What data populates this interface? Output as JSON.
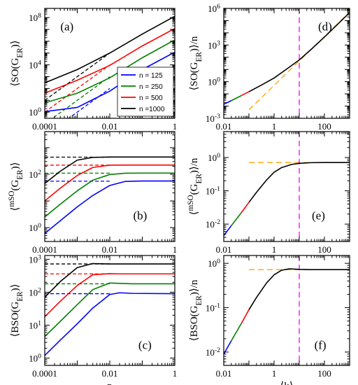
{
  "chart_data": [
    {
      "id": "a",
      "label": "(a)",
      "type": "line",
      "xscale": "log",
      "yscale": "log",
      "xlim": [
        0.0001,
        1
      ],
      "ylim": [
        0.3,
        600000000
      ],
      "xticks": [
        "0.0001",
        "0.01",
        "1"
      ],
      "xtick_values": [
        0.0001,
        0.01,
        1
      ],
      "yticks": [
        "10^0",
        "10^4",
        "10^8"
      ],
      "ytick_values": [
        1,
        10000,
        100000000
      ],
      "ylabel": "⟨SO(G_ER)⟩",
      "xlabel": "",
      "legend": {
        "position": "lower-right",
        "entries": [
          "n = 125",
          "n = 250",
          "n = 500",
          "n =1000"
        ]
      },
      "series": [
        {
          "name": "n = 125",
          "color": "#0000ff",
          "x": [
            0.0001,
            0.001,
            0.01,
            0.1,
            1
          ],
          "y": [
            1.1,
            2.5,
            60,
            4000,
            120000
          ]
        },
        {
          "name": "n = 250",
          "color": "#008000",
          "x": [
            0.0001,
            0.001,
            0.01,
            0.1,
            1
          ],
          "y": [
            6,
            40,
            800,
            40000,
            1300000
          ]
        },
        {
          "name": "n = 500",
          "color": "#ff0000",
          "x": [
            0.0001,
            0.001,
            0.01,
            0.1,
            1
          ],
          "y": [
            40,
            500,
            9000,
            400000,
            12000000
          ]
        },
        {
          "name": "n =1000",
          "color": "#000000",
          "x": [
            0.0001,
            0.001,
            0.01,
            0.1,
            1
          ],
          "y": [
            300,
            4000,
            100000,
            4000000,
            130000000
          ]
        }
      ],
      "reference_lines": [
        {
          "color": "#0000ff",
          "dashed": true,
          "x": [
            0.0001,
            0.01
          ],
          "y": [
            0.01,
            100
          ]
        },
        {
          "color": "#008000",
          "dashed": true,
          "x": [
            0.0001,
            0.01
          ],
          "y": [
            0.1,
            1000
          ]
        },
        {
          "color": "#ff0000",
          "dashed": true,
          "x": [
            0.0001,
            0.01
          ],
          "y": [
            1,
            10000
          ]
        },
        {
          "color": "#000000",
          "dashed": true,
          "x": [
            0.0001,
            0.01
          ],
          "y": [
            10,
            100000
          ]
        }
      ]
    },
    {
      "id": "b",
      "label": "(b)",
      "type": "line",
      "xscale": "log",
      "yscale": "log",
      "xlim": [
        0.0001,
        1
      ],
      "ylim": [
        0.3,
        4000
      ],
      "xticks": [
        "0.0001",
        "0.01",
        "1"
      ],
      "xtick_values": [
        0.0001,
        0.01,
        1
      ],
      "yticks": [
        "10^0",
        "10^2"
      ],
      "ytick_values": [
        1,
        100
      ],
      "ylabel": "⟨^mSO(G_ER)⟩",
      "xlabel": "",
      "series": [
        {
          "name": "n = 125",
          "color": "#0000ff",
          "x": [
            0.0001,
            0.0003,
            0.001,
            0.003,
            0.01,
            0.03,
            0.1,
            1
          ],
          "y": [
            0.6,
            1.8,
            6,
            16,
            38,
            54,
            56,
            56
          ]
        },
        {
          "name": "n = 250",
          "color": "#008000",
          "x": [
            0.0001,
            0.0003,
            0.001,
            0.003,
            0.01,
            0.03,
            0.1,
            1
          ],
          "y": [
            2.5,
            7.5,
            24,
            60,
            98,
            110,
            111,
            111
          ]
        },
        {
          "name": "n = 500",
          "color": "#ff0000",
          "x": [
            0.0001,
            0.0003,
            0.001,
            0.003,
            0.01,
            0.03,
            0.1,
            1
          ],
          "y": [
            10,
            30,
            90,
            180,
            220,
            222,
            222,
            222
          ]
        },
        {
          "name": "n =1000",
          "color": "#000000",
          "x": [
            0.0001,
            0.0003,
            0.001,
            0.003,
            0.01,
            0.03,
            0.1,
            1
          ],
          "y": [
            45,
            130,
            340,
            430,
            444,
            445,
            445,
            445
          ]
        }
      ],
      "reference_lines": [
        {
          "color": "#0000ff",
          "dashed": true,
          "x": [
            0.0001,
            0.01
          ],
          "y": [
            55,
            55
          ]
        },
        {
          "color": "#008000",
          "dashed": true,
          "x": [
            0.0001,
            0.01
          ],
          "y": [
            110,
            110
          ]
        },
        {
          "color": "#ff0000",
          "dashed": true,
          "x": [
            0.0001,
            0.01
          ],
          "y": [
            220,
            220
          ]
        },
        {
          "color": "#000000",
          "dashed": true,
          "x": [
            0.0001,
            0.01
          ],
          "y": [
            440,
            440
          ]
        }
      ]
    },
    {
      "id": "c",
      "label": "(c)",
      "type": "line",
      "xscale": "log",
      "yscale": "log",
      "xlim": [
        0.0001,
        1
      ],
      "ylim": [
        0.6,
        1300
      ],
      "xticks": [
        "0.0001",
        "0.01",
        "1"
      ],
      "xtick_values": [
        0.0001,
        0.01,
        1
      ],
      "yticks": [
        "10^0",
        "10^1",
        "10^2",
        "10^3"
      ],
      "ytick_values": [
        1,
        10,
        100,
        1000
      ],
      "ylabel": "⟨BSO(G_ER)⟩",
      "xlabel": "p",
      "series": [
        {
          "name": "n = 125",
          "color": "#0000ff",
          "x": [
            0.0001,
            0.0003,
            0.001,
            0.003,
            0.01,
            0.02,
            0.05,
            1
          ],
          "y": [
            1.2,
            3.5,
            11,
            33,
            85,
            96,
            92,
            90
          ]
        },
        {
          "name": "n = 250",
          "color": "#008000",
          "x": [
            0.0001,
            0.0003,
            0.001,
            0.003,
            0.01,
            0.02,
            0.05,
            1
          ],
          "y": [
            4.5,
            13,
            42,
            120,
            190,
            185,
            180,
            180
          ]
        },
        {
          "name": "n = 500",
          "color": "#ff0000",
          "x": [
            0.0001,
            0.0003,
            0.001,
            0.003,
            0.01,
            0.02,
            0.05,
            1
          ],
          "y": [
            18,
            53,
            160,
            340,
            365,
            360,
            360,
            360
          ]
        },
        {
          "name": "n =1000",
          "color": "#000000",
          "x": [
            0.0001,
            0.0003,
            0.001,
            0.003,
            0.01,
            0.02,
            0.05,
            1
          ],
          "y": [
            70,
            210,
            560,
            740,
            720,
            720,
            720,
            720
          ]
        }
      ],
      "reference_lines": [
        {
          "color": "#0000ff",
          "dashed": true,
          "x": [
            0.0001,
            0.01
          ],
          "y": [
            90,
            90
          ]
        },
        {
          "color": "#008000",
          "dashed": true,
          "x": [
            0.0001,
            0.01
          ],
          "y": [
            180,
            180
          ]
        },
        {
          "color": "#ff0000",
          "dashed": true,
          "x": [
            0.0001,
            0.01
          ],
          "y": [
            360,
            360
          ]
        },
        {
          "color": "#000000",
          "dashed": true,
          "x": [
            0.0001,
            0.01
          ],
          "y": [
            720,
            720
          ]
        }
      ]
    },
    {
      "id": "d",
      "label": "(d)",
      "type": "line",
      "xscale": "log",
      "yscale": "log",
      "xlim": [
        0.01,
        1000
      ],
      "ylim": [
        0.001,
        1000000
      ],
      "xticks": [
        "0.01",
        "1",
        "100"
      ],
      "xtick_values": [
        0.01,
        1,
        100
      ],
      "yticks": [
        "10^-3",
        "10^0",
        "10^3",
        "10^6"
      ],
      "ytick_values": [
        0.001,
        1,
        1000,
        1000000
      ],
      "ylabel": "⟨SO(G_ER)⟩/n",
      "xlabel": "",
      "vline": {
        "x": 10,
        "color": "#ff00ff"
      },
      "series": [
        {
          "name": "",
          "color": "#0000ff",
          "x": [
            0.01,
            0.02
          ],
          "y": [
            0.014,
            0.028
          ]
        },
        {
          "name": "",
          "color": "#008000",
          "x": [
            0.02,
            0.05
          ],
          "y": [
            0.028,
            0.072
          ]
        },
        {
          "name": "",
          "color": "#ff0000",
          "x": [
            0.05,
            0.1
          ],
          "y": [
            0.072,
            0.15
          ]
        },
        {
          "name": "",
          "color": "#000000",
          "x": [
            0.1,
            0.3,
            1,
            3,
            10,
            30,
            100,
            1000
          ],
          "y": [
            0.15,
            0.5,
            2,
            10,
            60,
            450,
            4500,
            450000
          ]
        }
      ],
      "reference_lines": [
        {
          "color": "#ffa500",
          "dashed": true,
          "x": [
            0.1,
            1000
          ],
          "y": [
            0.005,
            500000
          ]
        }
      ]
    },
    {
      "id": "e",
      "label": "(e)",
      "type": "line",
      "xscale": "log",
      "yscale": "log",
      "xlim": [
        0.01,
        1000
      ],
      "ylim": [
        0.003,
        6
      ],
      "xticks": [
        "0.01",
        "1",
        "100"
      ],
      "xtick_values": [
        0.01,
        1,
        100
      ],
      "yticks": [
        "10^-2",
        "10^-1",
        "10^0"
      ],
      "ytick_values": [
        0.01,
        0.1,
        1
      ],
      "ylabel": "⟨^mSO(G_ER)⟩/n",
      "xlabel": "",
      "vline": {
        "x": 10,
        "color": "#ff00ff"
      },
      "series": [
        {
          "name": "",
          "color": "#0000ff",
          "x": [
            0.01,
            0.02
          ],
          "y": [
            0.0045,
            0.009
          ]
        },
        {
          "name": "",
          "color": "#008000",
          "x": [
            0.02,
            0.05
          ],
          "y": [
            0.009,
            0.022
          ]
        },
        {
          "name": "",
          "color": "#ff0000",
          "x": [
            0.05,
            0.1
          ],
          "y": [
            0.022,
            0.045
          ]
        },
        {
          "name": "",
          "color": "#000000",
          "x": [
            0.1,
            0.2,
            0.5,
            1,
            2,
            5,
            10,
            30,
            100,
            1000
          ],
          "y": [
            0.045,
            0.09,
            0.21,
            0.36,
            0.5,
            0.62,
            0.67,
            0.7,
            0.707,
            0.707
          ]
        }
      ],
      "reference_lines": [
        {
          "color": "#ffa500",
          "dashed": true,
          "x": [
            0.1,
            1000
          ],
          "y": [
            0.707,
            0.707
          ]
        }
      ]
    },
    {
      "id": "f",
      "label": "(f)",
      "type": "line",
      "xscale": "log",
      "yscale": "log",
      "xlim": [
        0.01,
        1000
      ],
      "ylim": [
        0.005,
        1.5
      ],
      "xticks": [
        "0.01",
        "1",
        "100"
      ],
      "xtick_values": [
        0.01,
        1,
        100
      ],
      "yticks": [
        "10^-2",
        "10^-1",
        "10^0"
      ],
      "ytick_values": [
        0.01,
        0.1,
        1
      ],
      "ylabel": "⟨BSO(G_ER)⟩/n",
      "xlabel": "⟨k⟩",
      "vline": {
        "x": 10,
        "color": "#ff00ff"
      },
      "series": [
        {
          "name": "",
          "color": "#0000ff",
          "x": [
            0.01,
            0.02
          ],
          "y": [
            0.009,
            0.018
          ]
        },
        {
          "name": "",
          "color": "#008000",
          "x": [
            0.02,
            0.05
          ],
          "y": [
            0.018,
            0.044
          ]
        },
        {
          "name": "",
          "color": "#ff0000",
          "x": [
            0.05,
            0.1
          ],
          "y": [
            0.044,
            0.09
          ]
        },
        {
          "name": "",
          "color": "#000000",
          "x": [
            0.1,
            0.2,
            0.5,
            1,
            2,
            4,
            10,
            30,
            1000
          ],
          "y": [
            0.09,
            0.17,
            0.36,
            0.55,
            0.7,
            0.75,
            0.73,
            0.72,
            0.72
          ]
        }
      ],
      "reference_lines": [
        {
          "color": "#ffa500",
          "dashed": true,
          "x": [
            0.1,
            1000
          ],
          "y": [
            0.72,
            0.72
          ]
        }
      ]
    }
  ]
}
